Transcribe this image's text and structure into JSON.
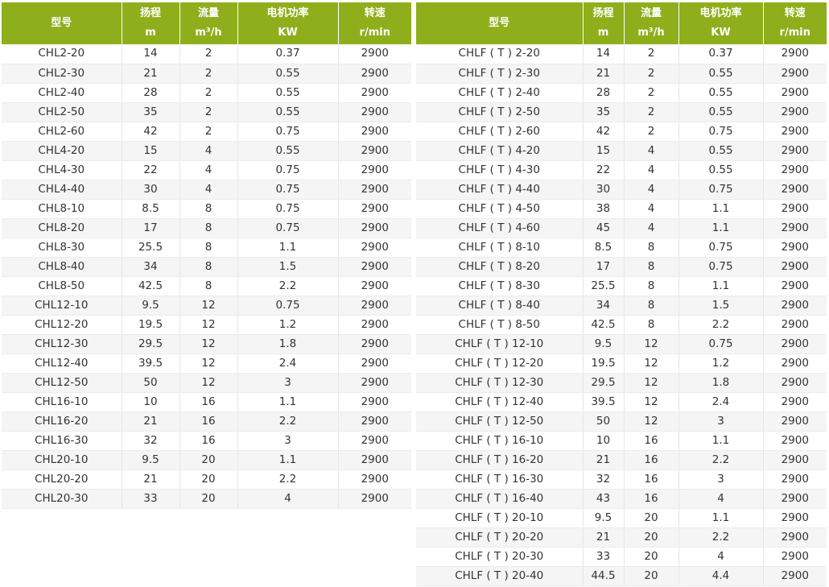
{
  "colors": {
    "header_bg": "#8fae1b",
    "header_text": "#ffffff",
    "row_alt": "#f5f5f5"
  },
  "headers": [
    {
      "line1": "型号",
      "line2": ""
    },
    {
      "line1": "扬程",
      "line2": "m"
    },
    {
      "line1": "流量",
      "line2": "m³/h"
    },
    {
      "line1": "电机功率",
      "line2": "KW"
    },
    {
      "line1": "转速",
      "line2": "r/min"
    }
  ],
  "left_table": [
    [
      "CHL2-20",
      "14",
      "2",
      "0.37",
      "2900"
    ],
    [
      "CHL2-30",
      "21",
      "2",
      "0.55",
      "2900"
    ],
    [
      "CHL2-40",
      "28",
      "2",
      "0.55",
      "2900"
    ],
    [
      "CHL2-50",
      "35",
      "2",
      "0.55",
      "2900"
    ],
    [
      "CHL2-60",
      "42",
      "2",
      "0.75",
      "2900"
    ],
    [
      "CHL4-20",
      "15",
      "4",
      "0.55",
      "2900"
    ],
    [
      "CHL4-30",
      "22",
      "4",
      "0.75",
      "2900"
    ],
    [
      "CHL4-40",
      "30",
      "4",
      "0.75",
      "2900"
    ],
    [
      "CHL8-10",
      "8.5",
      "8",
      "0.75",
      "2900"
    ],
    [
      "CHL8-20",
      "17",
      "8",
      "0.75",
      "2900"
    ],
    [
      "CHL8-30",
      "25.5",
      "8",
      "1.1",
      "2900"
    ],
    [
      "CHL8-40",
      "34",
      "8",
      "1.5",
      "2900"
    ],
    [
      "CHL8-50",
      "42.5",
      "8",
      "2.2",
      "2900"
    ],
    [
      "CHL12-10",
      "9.5",
      "12",
      "0.75",
      "2900"
    ],
    [
      "CHL12-20",
      "19.5",
      "12",
      "1.2",
      "2900"
    ],
    [
      "CHL12-30",
      "29.5",
      "12",
      "1.8",
      "2900"
    ],
    [
      "CHL12-40",
      "39.5",
      "12",
      "2.4",
      "2900"
    ],
    [
      "CHL12-50",
      "50",
      "12",
      "3",
      "2900"
    ],
    [
      "CHL16-10",
      "10",
      "16",
      "1.1",
      "2900"
    ],
    [
      "CHL16-20",
      "21",
      "16",
      "2.2",
      "2900"
    ],
    [
      "CHL16-30",
      "32",
      "16",
      "3",
      "2900"
    ],
    [
      "CHL20-10",
      "9.5",
      "20",
      "1.1",
      "2900"
    ],
    [
      "CHL20-20",
      "21",
      "20",
      "2.2",
      "2900"
    ],
    [
      "CHL20-30",
      "33",
      "20",
      "4",
      "2900"
    ]
  ],
  "right_table": [
    [
      "CHLF ( T ) 2-20",
      "14",
      "2",
      "0.37",
      "2900"
    ],
    [
      "CHLF ( T ) 2-30",
      "21",
      "2",
      "0.55",
      "2900"
    ],
    [
      "CHLF ( T ) 2-40",
      "28",
      "2",
      "0.55",
      "2900"
    ],
    [
      "CHLF ( T ) 2-50",
      "35",
      "2",
      "0.55",
      "2900"
    ],
    [
      "CHLF ( T ) 2-60",
      "42",
      "2",
      "0.75",
      "2900"
    ],
    [
      "CHLF ( T ) 4-20",
      "15",
      "4",
      "0.55",
      "2900"
    ],
    [
      "CHLF ( T ) 4-30",
      "22",
      "4",
      "0.55",
      "2900"
    ],
    [
      "CHLF ( T ) 4-40",
      "30",
      "4",
      "0.75",
      "2900"
    ],
    [
      "CHLF ( T ) 4-50",
      "38",
      "4",
      "1.1",
      "2900"
    ],
    [
      "CHLF ( T ) 4-60",
      "45",
      "4",
      "1.1",
      "2900"
    ],
    [
      "CHLF ( T ) 8-10",
      "8.5",
      "8",
      "0.75",
      "2900"
    ],
    [
      "CHLF ( T ) 8-20",
      "17",
      "8",
      "0.75",
      "2900"
    ],
    [
      "CHLF ( T ) 8-30",
      "25.5",
      "8",
      "1.1",
      "2900"
    ],
    [
      "CHLF ( T ) 8-40",
      "34",
      "8",
      "1.5",
      "2900"
    ],
    [
      "CHLF ( T ) 8-50",
      "42.5",
      "8",
      "2.2",
      "2900"
    ],
    [
      "CHLF ( T ) 12-10",
      "9.5",
      "12",
      "0.75",
      "2900"
    ],
    [
      "CHLF ( T ) 12-20",
      "19.5",
      "12",
      "1.2",
      "2900"
    ],
    [
      "CHLF ( T ) 12-30",
      "29.5",
      "12",
      "1.8",
      "2900"
    ],
    [
      "CHLF ( T ) 12-40",
      "39.5",
      "12",
      "2.4",
      "2900"
    ],
    [
      "CHLF ( T ) 12-50",
      "50",
      "12",
      "3",
      "2900"
    ],
    [
      "CHLF ( T ) 16-10",
      "10",
      "16",
      "1.1",
      "2900"
    ],
    [
      "CHLF ( T ) 16-20",
      "21",
      "16",
      "2.2",
      "2900"
    ],
    [
      "CHLF ( T ) 16-30",
      "32",
      "16",
      "3",
      "2900"
    ],
    [
      "CHLF ( T ) 16-40",
      "43",
      "16",
      "4",
      "2900"
    ],
    [
      "CHLF ( T ) 20-10",
      "9.5",
      "20",
      "1.1",
      "2900"
    ],
    [
      "CHLF ( T ) 20-20",
      "21",
      "20",
      "2.2",
      "2900"
    ],
    [
      "CHLF ( T ) 20-30",
      "33",
      "20",
      "4",
      "2900"
    ],
    [
      "CHLF ( T ) 20-40",
      "44.5",
      "20",
      "4.4",
      "2900"
    ]
  ]
}
